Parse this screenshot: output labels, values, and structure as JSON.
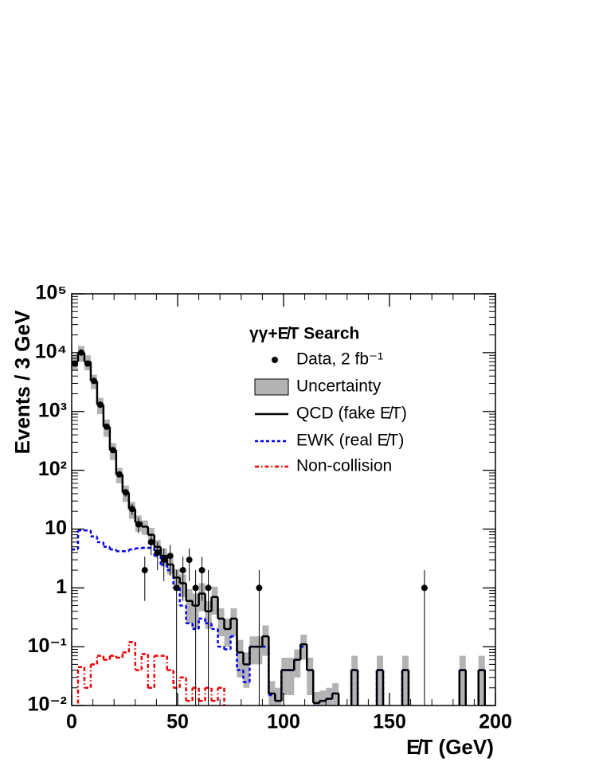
{
  "chart_data": {
    "type": "histogram",
    "x_label": "E̸T (GeV)",
    "y_label": "Events / 3  GeV",
    "legend_title": "γγ+E̸T Search",
    "xlim": [
      0,
      200
    ],
    "ylim": [
      0.01,
      100000
    ],
    "log_y": true,
    "xticks": [
      0,
      50,
      100,
      150,
      200
    ],
    "yticks": [
      {
        "value": 0.01,
        "label": "10⁻²"
      },
      {
        "value": 0.1,
        "label": "10⁻¹"
      },
      1,
      10,
      {
        "value": 100,
        "label": "10²"
      },
      {
        "value": 1000,
        "label": "10³"
      },
      {
        "value": 10000,
        "label": "10⁴"
      },
      {
        "value": 100000,
        "label": "10⁵"
      }
    ],
    "bins": [
      0,
      3,
      6,
      9,
      12,
      15,
      18,
      21,
      24,
      27,
      30,
      33,
      36,
      39,
      42,
      45,
      48,
      51,
      54,
      57,
      60,
      63,
      66,
      69,
      72,
      75,
      78,
      81,
      84,
      87,
      90,
      93,
      96,
      99,
      102,
      105,
      108,
      111,
      114,
      117,
      120,
      123,
      126,
      129,
      132,
      135,
      138,
      141,
      144,
      147,
      150,
      153,
      156,
      159,
      162,
      165,
      168,
      171,
      174,
      177,
      180,
      183,
      186,
      189,
      192,
      195,
      198
    ],
    "uncertainty": {
      "name": "Uncertainty",
      "color": "#b3b3b3"
    },
    "series": [
      {
        "name": "QCD (fake E̸T)",
        "color": "#000000",
        "style": "solid",
        "values": [
          7000,
          10000,
          7000,
          3300,
          1300,
          550,
          220,
          85,
          42,
          22,
          13,
          11,
          8,
          5,
          3.5,
          2.5,
          1.5,
          1.2,
          0.6,
          0.5,
          0.8,
          0.4,
          0.7,
          0.3,
          0.2,
          0.3,
          0.08,
          0.05,
          0.1,
          0.1,
          0.15,
          0.016,
          0.012,
          0.04,
          0.04,
          0.06,
          0.11,
          0.04,
          0.011,
          0.012,
          0.013,
          0.016,
          0,
          0,
          0.04,
          0,
          0,
          0,
          0.04,
          0,
          0,
          0,
          0.04,
          0,
          0,
          0,
          0,
          0,
          0,
          0,
          0,
          0.04,
          0,
          0,
          0.04,
          0
        ],
        "errors": [
          2000,
          3000,
          2000,
          900,
          400,
          180,
          70,
          25,
          13,
          7,
          4,
          3,
          2.5,
          1.5,
          1.2,
          0.8,
          0.6,
          0.5,
          0.35,
          0.3,
          0.4,
          0.2,
          0.35,
          0.15,
          0.1,
          0.15,
          0.05,
          0.03,
          0.05,
          0.05,
          0.08,
          0.01,
          0.008,
          0.025,
          0.025,
          0.03,
          0.05,
          0.025,
          0.006,
          0.006,
          0.007,
          0.008,
          0,
          0,
          0.03,
          0,
          0,
          0,
          0.03,
          0,
          0,
          0,
          0.03,
          0,
          0,
          0,
          0,
          0,
          0,
          0,
          0,
          0.03,
          0,
          0,
          0.03,
          0
        ]
      },
      {
        "name": "EWK (real E̸T)",
        "color": "#0000ee",
        "style": "dashed",
        "values": [
          4.5,
          9.5,
          9.5,
          7.5,
          6,
          5,
          4.5,
          4.2,
          4.2,
          4.5,
          4.7,
          4.8,
          4.8,
          3.5,
          2.5,
          2,
          1,
          0.5,
          0.25,
          0.2,
          0.3,
          0.25,
          0.2,
          0.1,
          0.09,
          0.15,
          0.04,
          0.025,
          0.1,
          0.1,
          0.1,
          0.015,
          0.012,
          0.04,
          0.04,
          0.06,
          0.1,
          0.04,
          0.011,
          0.012,
          0.013,
          0.016,
          0,
          0,
          0.04,
          0,
          0,
          0,
          0.04,
          0,
          0,
          0,
          0.04,
          0,
          0,
          0,
          0,
          0,
          0,
          0,
          0,
          0.04,
          0,
          0,
          0.04,
          0
        ]
      },
      {
        "name": "Non-collision",
        "color": "#ee0000",
        "style": "dashdot",
        "values": [
          0,
          0.045,
          0.02,
          0.05,
          0.07,
          0.06,
          0.07,
          0.065,
          0.08,
          0.12,
          0.04,
          0.075,
          0.02,
          0.07,
          0.07,
          0.04,
          0.02,
          0.03,
          0.012,
          0.02,
          0.012,
          0.02,
          0.012,
          0.02,
          0,
          0,
          0,
          0,
          0,
          0,
          0,
          0,
          0,
          0,
          0,
          0,
          0,
          0,
          0,
          0,
          0,
          0,
          0,
          0,
          0,
          0,
          0,
          0,
          0,
          0,
          0,
          0,
          0,
          0,
          0,
          0,
          0,
          0,
          0,
          0,
          0,
          0,
          0,
          0,
          0,
          0
        ]
      }
    ],
    "data": {
      "name": "Data, 2 fb⁻¹",
      "color": "#000000",
      "x": [
        1.5,
        4.5,
        7.5,
        10.5,
        13.5,
        16.5,
        19.5,
        22.5,
        25.5,
        28.5,
        31.5,
        34.5,
        37.5,
        40.5,
        43.5,
        46.5,
        49.5,
        52.5,
        55.5,
        58.5,
        61.5,
        64.5,
        88.5,
        166.5
      ],
      "values": [
        6500,
        10000,
        6500,
        3300,
        1300,
        550,
        220,
        85,
        42,
        22,
        12,
        2,
        6,
        4,
        3,
        3.5,
        1,
        2,
        3,
        1,
        2,
        1,
        1,
        1
      ],
      "errors": [
        80,
        100,
        80,
        57,
        36,
        23,
        15,
        9,
        6.5,
        4.7,
        3.5,
        1.4,
        2.4,
        2,
        1.7,
        1.9,
        1,
        1.4,
        1.7,
        1,
        1.4,
        1,
        1,
        1
      ]
    }
  }
}
